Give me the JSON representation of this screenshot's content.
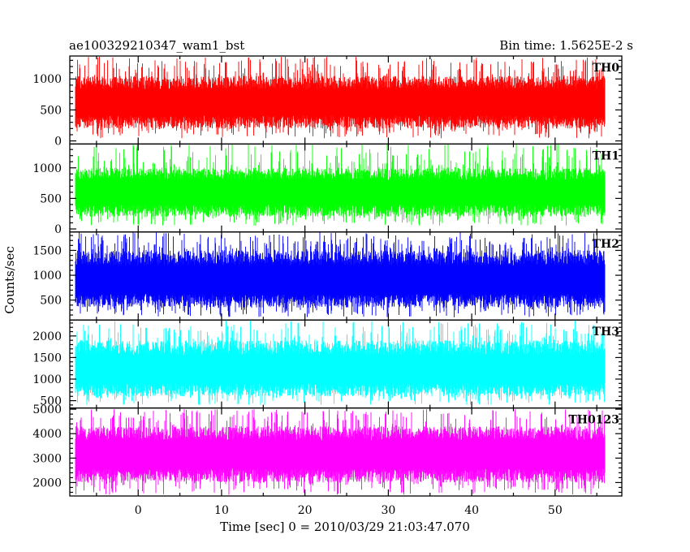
{
  "chart_data": {
    "type": "line",
    "title": "ae100329210347_wam1_bst",
    "subtitle": "Bin time: 1.5625E-2 s",
    "xlabel": "Time [sec] 0 = 2010/03/29 21:03:47.070",
    "ylabel": "Counts/sec",
    "xlim": [
      -8.2,
      58
    ],
    "data_x_range": [
      -7.5,
      56
    ],
    "xticks": [
      "0",
      "10",
      "20",
      "30",
      "40",
      "50"
    ],
    "grid": false,
    "legend": "inside top-right of each panel",
    "panels": [
      {
        "name": "TH0",
        "color": "#ff0000",
        "ylim": [
          -50,
          1370
        ],
        "yticks": [
          "0",
          "500",
          "1000"
        ],
        "typical_range": [
          200,
          1050
        ],
        "extreme_range": [
          40,
          1360
        ],
        "median": 620
      },
      {
        "name": "TH1",
        "color": "#00ff00",
        "ylim": [
          -50,
          1390
        ],
        "yticks": [
          "0",
          "500",
          "1000",
          ""
        ],
        "typical_range": [
          200,
          1000
        ],
        "extreme_range": [
          50,
          1400
        ],
        "median": 600
      },
      {
        "name": "TH2",
        "color": "#0000ff",
        "ylim": [
          100,
          1870
        ],
        "yticks": [
          "500",
          "1000",
          "1500"
        ],
        "typical_range": [
          350,
          1500
        ],
        "extreme_range": [
          150,
          1870
        ],
        "median": 900
      },
      {
        "name": "TH3",
        "color": "#00ffff",
        "ylim": [
          330,
          2370
        ],
        "yticks": [
          "500",
          "1000",
          "1500",
          "2000"
        ],
        "typical_range": [
          600,
          1900
        ],
        "extreme_range": [
          400,
          2370
        ],
        "median": 1200
      },
      {
        "name": "TH0123",
        "color": "#ff00ff",
        "ylim": [
          1450,
          5050
        ],
        "yticks": [
          "2000",
          "3000",
          "4000",
          "5000"
        ],
        "typical_range": [
          2000,
          4300
        ],
        "extreme_range": [
          1500,
          5000
        ],
        "median": 3150
      }
    ]
  }
}
